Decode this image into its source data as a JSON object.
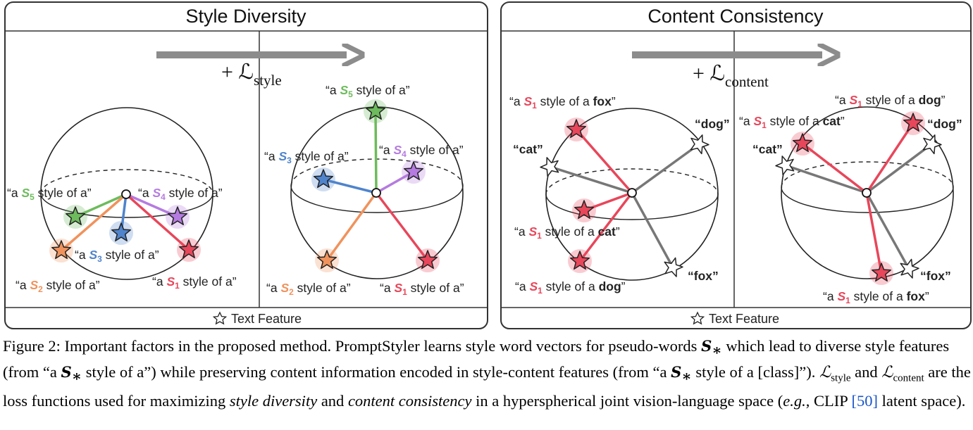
{
  "panels": {
    "left": {
      "title": "Style Diversity",
      "loss_symbol": "+ ℒ",
      "loss_sub": "style",
      "footer": "Text Feature"
    },
    "right": {
      "title": "Content Consistency",
      "loss_symbol": "+ ℒ",
      "loss_sub": "content",
      "footer": "Text Feature"
    }
  },
  "labels": {
    "sd_before": {
      "s5": {
        "pre": "“a ",
        "s": "S",
        "n": "5",
        "post": " style of a”"
      },
      "s4": {
        "pre": "“a ",
        "s": "S",
        "n": "4",
        "post": " style of a”"
      },
      "s3": {
        "pre": "“a ",
        "s": "S",
        "n": "3",
        "post": " style of a”"
      },
      "s2": {
        "pre": "“a ",
        "s": "S",
        "n": "2",
        "post": " style of a”"
      },
      "s1": {
        "pre": "“a ",
        "s": "S",
        "n": "1",
        "post": " style of a”"
      }
    },
    "sd_after": {
      "s5": {
        "pre": "“a ",
        "s": "S",
        "n": "5",
        "post": " style of a”"
      },
      "s3": {
        "pre": "“a ",
        "s": "S",
        "n": "3",
        "post": " style of a”"
      },
      "s4": {
        "pre": "“a ",
        "s": "S",
        "n": "4",
        "post": " style of a”"
      },
      "s2": {
        "pre": "“a ",
        "s": "S",
        "n": "2",
        "post": " style of a”"
      },
      "s1": {
        "pre": "“a ",
        "s": "S",
        "n": "1",
        "post": " style of a”"
      }
    },
    "cc_before": {
      "fox_style": {
        "pre": "“a ",
        "s": "S",
        "n": "1",
        "post": " style of a ",
        "cls": "fox",
        "end": "”"
      },
      "dog": "“dog”",
      "cat": "“cat”",
      "cat_style": {
        "pre": "“a ",
        "s": "S",
        "n": "1",
        "post": " style of a ",
        "cls": "cat",
        "end": "”"
      },
      "fox": "“fox”",
      "dog_style": {
        "pre": "“a ",
        "s": "S",
        "n": "1",
        "post": " style of a ",
        "cls": "dog",
        "end": "”"
      }
    },
    "cc_after": {
      "dog_style": {
        "pre": "“a ",
        "s": "S",
        "n": "1",
        "post": " style of a ",
        "cls": "dog",
        "end": "”"
      },
      "cat_style": {
        "pre": "“a ",
        "s": "S",
        "n": "1",
        "post": " style of a ",
        "cls": "cat",
        "end": "”"
      },
      "dog": "“dog”",
      "cat": "“cat”",
      "fox": "“fox”",
      "fox_style": {
        "pre": "“a ",
        "s": "S",
        "n": "1",
        "post": " style of a ",
        "cls": "fox",
        "end": "”"
      }
    }
  },
  "colors": {
    "s1": "#e8465a",
    "s2": "#f0925c",
    "s3": "#4f84cc",
    "s4": "#b57be0",
    "s5": "#6dbb5c",
    "content": "#777777",
    "arrow": "#8c8c8c"
  },
  "caption": {
    "figure_label": "Figure 2:",
    "part1": " Important factors in the proposed method. PromptStyler learns style word vectors for pseudo-words ",
    "math_s": "S",
    "math_star": "∗",
    "part2": " which lead to diverse style features (from “a ",
    "part3": " style of a”) while preserving content information encoded in style-content features (from “a ",
    "part4": " style of a [class]”). ",
    "L": "ℒ",
    "sub_style": "style",
    "and": " and ",
    "sub_content": "content",
    "part5": " are the loss functions used for maximizing ",
    "em1": "style diversity",
    "and2": " and ",
    "em2": "content consistency",
    "part6": " in a hyperspherical joint vision-language space (",
    "eg": "e.g.",
    "part7": ", CLIP ",
    "ref": "[50]",
    "part8": " latent space)."
  }
}
